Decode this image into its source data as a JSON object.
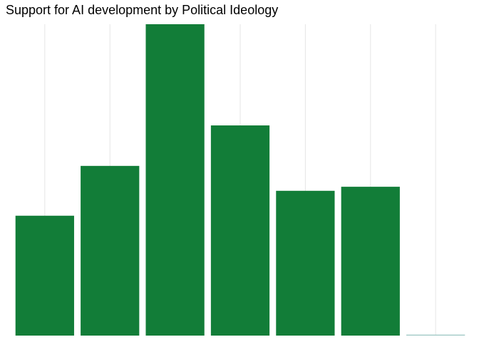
{
  "chart_data": {
    "type": "bar",
    "title": "Support for AI development by Political Ideology",
    "xlabel": "",
    "ylabel": "",
    "categories": [
      "",
      "",
      "",
      "",
      "",
      "",
      ""
    ],
    "values": [
      0.385,
      0.545,
      1.0,
      0.675,
      0.465,
      0.478,
      0.003
    ],
    "ylim": [
      0,
      1.0
    ],
    "grid": true,
    "legend": "none",
    "colors": {
      "bar": "#127d38",
      "grid": "#e6e6e6",
      "last_bar": "#9ec7c4"
    }
  }
}
